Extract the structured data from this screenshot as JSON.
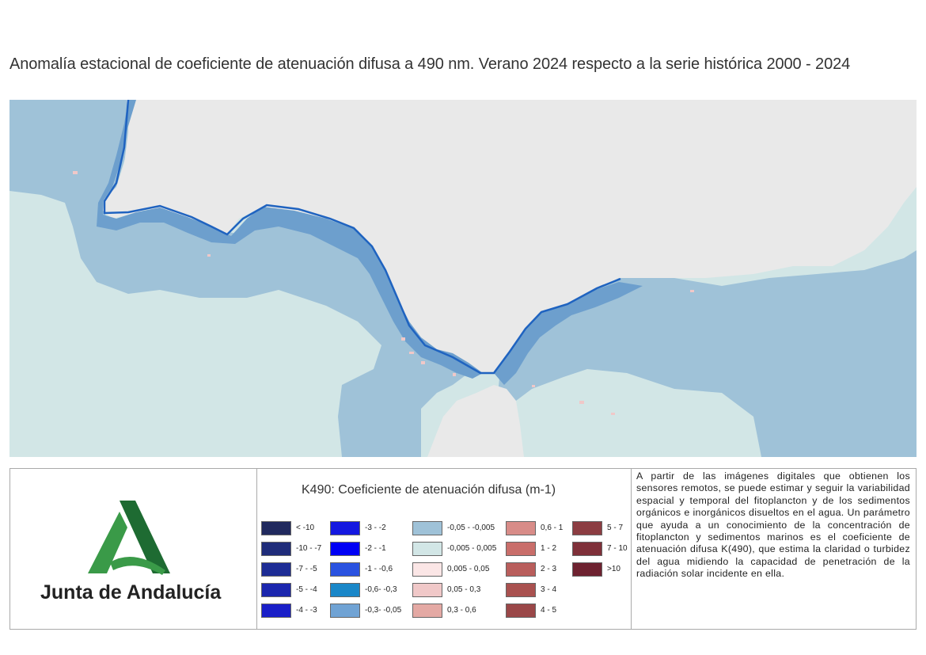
{
  "title": "Anomalía estacional de coeficiente de atenuación difusa a 490 nm. Verano 2024 respecto a la serie histórica 2000 - 2024",
  "map": {
    "land_color": "#e9e9e9",
    "background_water_color": "#d2e6e6",
    "offshore_color": "#9fc2d8",
    "coastal_band_color": "#6d9fcd",
    "coast_edge_color": "#1f63c0",
    "positive_patch_color": "#f0c8c8"
  },
  "logo": {
    "text": "Junta de Andalucía",
    "dark_green": "#1e6b32",
    "light_green": "#3a9a48"
  },
  "legend": {
    "title": "K490: Coeficiente de atenuación difusa (m-1)",
    "columns": [
      [
        {
          "label": "< -10",
          "color": "#20295e"
        },
        {
          "label": "-10 - -7",
          "color": "#1f2c7a"
        },
        {
          "label": "-7 - -5",
          "color": "#1d2c95"
        },
        {
          "label": "-5 - -4",
          "color": "#1b26ae"
        },
        {
          "label": "-4 - -3",
          "color": "#1a1fc8"
        }
      ],
      [
        {
          "label": "-3 - -2",
          "color": "#1418e0"
        },
        {
          "label": "-2 - -1",
          "color": "#0000f5"
        },
        {
          "label": "-1 - -0,6",
          "color": "#2a52e0"
        },
        {
          "label": "-0,6- -0,3",
          "color": "#1a87c8"
        },
        {
          "label": "-0,3- -0,05",
          "color": "#70a3d4"
        }
      ],
      [
        {
          "label": "-0,05 - -0,005",
          "color": "#9fc2d8"
        },
        {
          "label": "-0,005 - 0,005",
          "color": "#d2e6e6"
        },
        {
          "label": "0,005 - 0,05",
          "color": "#fbe6e6"
        },
        {
          "label": "0,05 - 0,3",
          "color": "#f0c8c8"
        },
        {
          "label": "0,3 - 0,6",
          "color": "#e4a9a4"
        }
      ],
      [
        {
          "label": "0,6 - 1",
          "color": "#d88c88"
        },
        {
          "label": "1 - 2",
          "color": "#c96e6a"
        },
        {
          "label": "2 - 3",
          "color": "#b95e5c"
        },
        {
          "label": "3 - 4",
          "color": "#a9514f"
        },
        {
          "label": "4 - 5",
          "color": "#9a4748"
        }
      ],
      [
        {
          "label": "5 - 7",
          "color": "#8c3d42"
        },
        {
          "label": "7 - 10",
          "color": "#7f3039"
        },
        {
          "label": ">10",
          "color": "#6e2230"
        }
      ]
    ]
  },
  "description": "A partir de las imágenes digitales que obtienen los sensores remotos, se puede estimar y seguir la variabilidad espacial y temporal del fitoplancton y de los sedimentos orgánicos e inorgánicos disueltos en el agua. Un parámetro que ayuda a un conocimiento de la concentración de fitoplancton y sedimentos marinos es el coeficiente de atenuación difusa K(490), que estima la claridad o turbidez del agua midiendo la capacidad de penetración de la radiación solar incidente en ella."
}
